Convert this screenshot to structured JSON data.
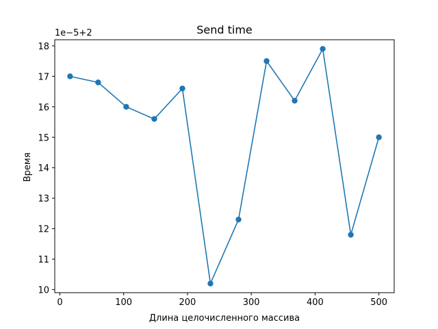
{
  "chart_data": {
    "type": "line",
    "title": "Send time",
    "xlabel": "Длина целочисленного массива",
    "ylabel": "Время",
    "y_offset_label": "1e−5+2",
    "x": [
      16,
      60,
      104,
      148,
      192,
      236,
      280,
      324,
      368,
      412,
      456,
      500
    ],
    "series": [
      {
        "values": [
          17.0,
          16.8,
          16.0,
          15.6,
          16.6,
          10.2,
          12.3,
          17.5,
          16.2,
          17.9,
          11.8,
          15.0
        ]
      }
    ],
    "xlim": [
      -8,
      524
    ],
    "ylim": [
      9.9,
      18.2
    ],
    "xticks": [
      0,
      100,
      200,
      300,
      400,
      500
    ],
    "yticks": [
      10,
      11,
      12,
      13,
      14,
      15,
      16,
      17,
      18
    ],
    "grid": false,
    "color": "#1f77b4"
  }
}
